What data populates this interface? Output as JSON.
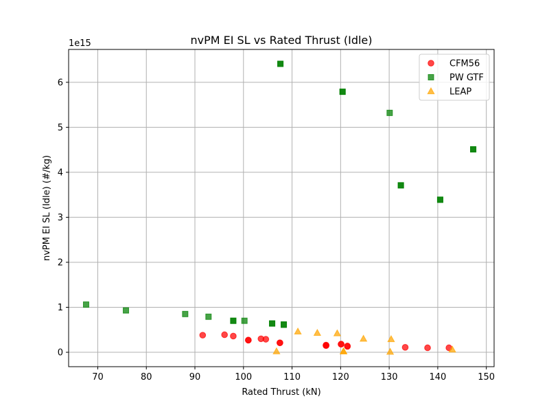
{
  "chart_data": {
    "type": "scatter",
    "title": "nvPM EI SL vs Rated Thrust (Idle)",
    "xlabel": "Rated Thrust (kN)",
    "ylabel": "nvPM EI SL (Idle) (#/kg)",
    "offset_text": "1e15",
    "xlim": [
      64.0,
      151.6
    ],
    "ylim": [
      -0.32,
      6.73
    ],
    "xticks": [
      70,
      80,
      90,
      100,
      110,
      120,
      130,
      140,
      150
    ],
    "xtick_labels": [
      "70",
      "80",
      "90",
      "100",
      "110",
      "120",
      "130",
      "140",
      "150"
    ],
    "yticks": [
      0,
      1,
      2,
      3,
      4,
      5,
      6
    ],
    "ytick_labels": [
      "0",
      "1",
      "2",
      "3",
      "4",
      "5",
      "6"
    ],
    "grid": true,
    "legend_position": "top-right",
    "series": [
      {
        "name": "CFM56",
        "marker": "circle",
        "color": "#ff0000",
        "points": [
          [
            91.6,
            0.38
          ],
          [
            96.1,
            0.39
          ],
          [
            97.9,
            0.36
          ],
          [
            101.0,
            0.27
          ],
          [
            101.0,
            0.27
          ],
          [
            103.6,
            0.3
          ],
          [
            104.6,
            0.29
          ],
          [
            107.5,
            0.21
          ],
          [
            107.5,
            0.21
          ],
          [
            117.0,
            0.16
          ],
          [
            117.0,
            0.15
          ],
          [
            117.0,
            0.15
          ],
          [
            120.1,
            0.18
          ],
          [
            120.1,
            0.18
          ],
          [
            121.4,
            0.14
          ],
          [
            121.4,
            0.13
          ],
          [
            133.3,
            0.11
          ],
          [
            137.9,
            0.1
          ],
          [
            142.3,
            0.1
          ]
        ]
      },
      {
        "name": "PW GTF",
        "marker": "square",
        "color": "#008000",
        "points": [
          [
            67.6,
            1.06
          ],
          [
            75.8,
            0.93
          ],
          [
            88.0,
            0.85
          ],
          [
            92.8,
            0.79
          ],
          [
            97.9,
            0.7
          ],
          [
            97.9,
            0.7
          ],
          [
            100.2,
            0.7
          ],
          [
            105.9,
            0.64
          ],
          [
            105.9,
            0.64
          ],
          [
            108.3,
            0.62
          ],
          [
            108.3,
            0.61
          ],
          [
            107.6,
            6.41
          ],
          [
            107.6,
            6.41
          ],
          [
            120.4,
            5.79
          ],
          [
            120.4,
            5.79
          ],
          [
            130.1,
            5.32
          ],
          [
            132.4,
            3.71
          ],
          [
            132.4,
            3.71
          ],
          [
            140.5,
            3.39
          ],
          [
            140.5,
            3.39
          ],
          [
            147.3,
            4.51
          ],
          [
            147.3,
            4.51
          ]
        ]
      },
      {
        "name": "LEAP",
        "marker": "triangle",
        "color": "#ffa500",
        "points": [
          [
            106.8,
            0.02
          ],
          [
            111.2,
            0.46
          ],
          [
            115.2,
            0.43
          ],
          [
            119.3,
            0.42
          ],
          [
            120.6,
            0.02
          ],
          [
            120.6,
            0.02
          ],
          [
            124.7,
            0.3
          ],
          [
            130.2,
            0.01
          ],
          [
            130.4,
            0.29
          ],
          [
            143.0,
            0.06
          ]
        ]
      }
    ]
  }
}
